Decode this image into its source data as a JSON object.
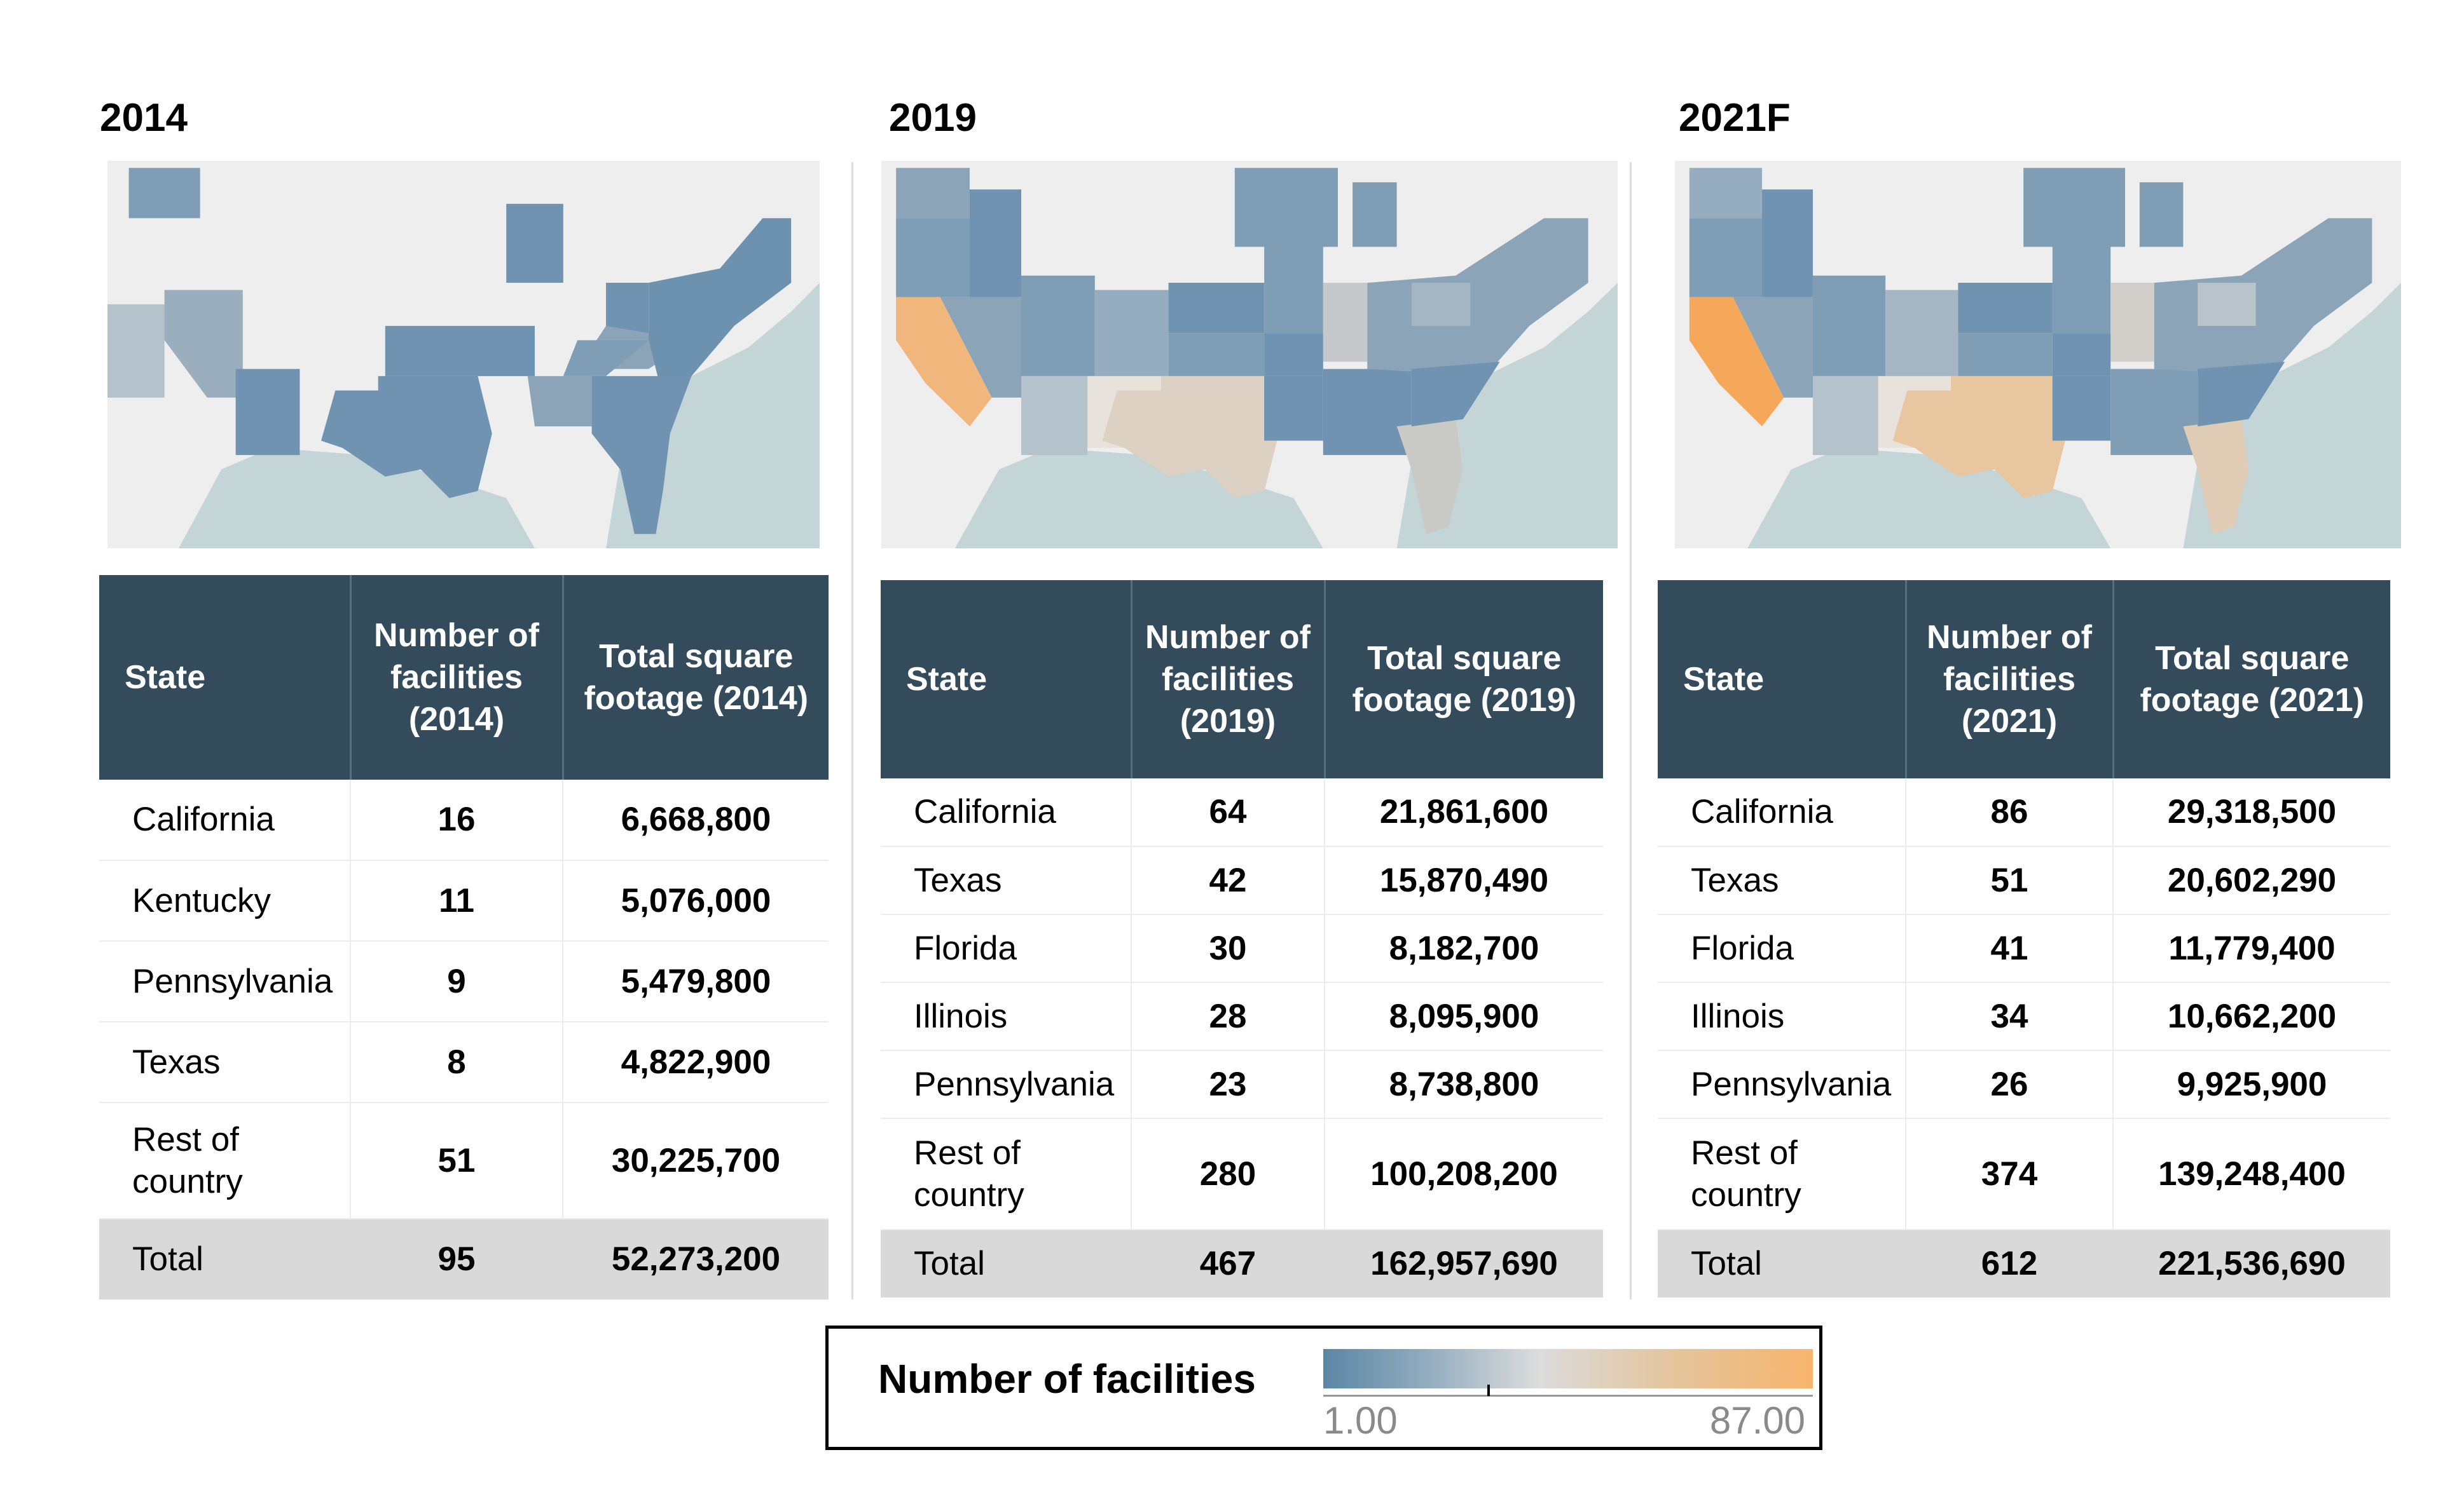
{
  "chart_data": [
    {
      "type": "table",
      "title": "2014",
      "headers": [
        "State",
        "Number of facilities (2014)",
        "Total square footage (2014)"
      ],
      "rows": [
        {
          "state": "California",
          "facilities": "16",
          "sqft": "6,668,800"
        },
        {
          "state": "Kentucky",
          "facilities": "11",
          "sqft": "5,076,000"
        },
        {
          "state": "Pennsylvania",
          "facilities": "9",
          "sqft": "5,479,800"
        },
        {
          "state": "Texas",
          "facilities": "8",
          "sqft": "4,822,900"
        },
        {
          "state": "Rest of country",
          "facilities": "51",
          "sqft": "30,225,700"
        }
      ],
      "total": {
        "state": "Total",
        "facilities": "95",
        "sqft": "52,273,200"
      }
    },
    {
      "type": "table",
      "title": "2019",
      "headers": [
        "State",
        "Number of facilities (2019)",
        "Total square footage (2019)"
      ],
      "rows": [
        {
          "state": "California",
          "facilities": "64",
          "sqft": "21,861,600"
        },
        {
          "state": "Texas",
          "facilities": "42",
          "sqft": "15,870,490"
        },
        {
          "state": "Florida",
          "facilities": "30",
          "sqft": "8,182,700"
        },
        {
          "state": "Illinois",
          "facilities": "28",
          "sqft": "8,095,900"
        },
        {
          "state": "Pennsylvania",
          "facilities": "23",
          "sqft": "8,738,800"
        },
        {
          "state": "Rest of country",
          "facilities": "280",
          "sqft": "100,208,200"
        }
      ],
      "total": {
        "state": "Total",
        "facilities": "467",
        "sqft": "162,957,690"
      }
    },
    {
      "type": "table",
      "title": "2021F",
      "headers": [
        "State",
        "Number of facilities (2021)",
        "Total square footage (2021)"
      ],
      "rows": [
        {
          "state": "California",
          "facilities": "86",
          "sqft": "29,318,500"
        },
        {
          "state": "Texas",
          "facilities": "51",
          "sqft": "20,602,290"
        },
        {
          "state": "Florida",
          "facilities": "41",
          "sqft": "11,779,400"
        },
        {
          "state": "Illinois",
          "facilities": "34",
          "sqft": "10,662,200"
        },
        {
          "state": "Pennsylvania",
          "facilities": "26",
          "sqft": "9,925,900"
        },
        {
          "state": "Rest of country",
          "facilities": "374",
          "sqft": "139,248,400"
        }
      ],
      "total": {
        "state": "Total",
        "facilities": "612",
        "sqft": "221,536,690"
      }
    }
  ],
  "legend": {
    "title": "Number of facilities",
    "min": "1.00",
    "max": "87.00",
    "color_low": "#5b86a5",
    "color_mid": "#dcdcdc",
    "color_high": "#f7b46b"
  }
}
